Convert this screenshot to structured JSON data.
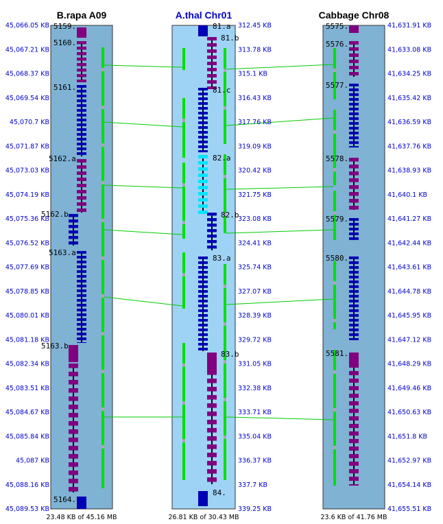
{
  "panels": [
    {
      "title": "B.rapa A09",
      "title_color": "#000000",
      "bg": "#7fb2d3",
      "caption": "23.48 KB of 45.16 MB",
      "tick_side": "left",
      "ticks": [
        "45,066.05 KB",
        "45,067.21 KB",
        "45,068.37 KB",
        "45,069.54 KB",
        "45,070.7 KB",
        "45,071.87 KB",
        "45,073.03 KB",
        "45,074.19 KB",
        "45,075.36 KB",
        "45,076.52 KB",
        "45,077.69 KB",
        "45,078.85 KB",
        "45,080.01 KB",
        "45,081.18 KB",
        "45,082.34 KB",
        "45,083.51 KB",
        "45,084.67 KB",
        "45,085.84 KB",
        "45,087 KB",
        "45,088.16 KB",
        "45,089.53 KB"
      ],
      "gene_labels": [
        "5159.",
        "5160.",
        "5161.",
        "5162.a",
        "5162.b",
        "5163.a",
        "5163.b",
        "5164."
      ]
    },
    {
      "title": "A.thal Chr01",
      "title_color": "#0000cc",
      "bg": "#9fd3f5",
      "caption": "26.81 KB of 30.43 MB",
      "tick_side": "right",
      "ticks": [
        "312.45 KB",
        "313.78 KB",
        "315.1 KB",
        "316.43 KB",
        "317.76 KB",
        "319.09 KB",
        "320.42 KB",
        "321.75 KB",
        "323.08 KB",
        "324.41 KB",
        "325.74 KB",
        "327.07 KB",
        "328.39 KB",
        "329.72 KB",
        "331.05 KB",
        "332.38 KB",
        "333.71 KB",
        "335.04 KB",
        "336.37 KB",
        "337.7 KB",
        "339.25 KB"
      ],
      "gene_labels": [
        "81.a",
        "81.b",
        "81.c",
        "82.a",
        "82.b",
        "83.a",
        "83.b",
        "84."
      ]
    },
    {
      "title": "Cabbage Chr08",
      "title_color": "#000000",
      "bg": "#7fb2d3",
      "caption": "23.6 KB of 41.76 MB",
      "tick_side": "right",
      "ticks": [
        "41,631.91 KB",
        "41,633.08 KB",
        "41,634.25 KB",
        "41,635.42 KB",
        "41,636.59 KB",
        "41,637.76 KB",
        "41,638.93 KB",
        "41,640.1 KB",
        "41,641.27 KB",
        "41,642.44 KB",
        "41,643.61 KB",
        "41,644.78 KB",
        "41,645.95 KB",
        "41,647.12 KB",
        "41,648.29 KB",
        "41,649.46 KB",
        "41,650.63 KB",
        "41,651.8 KB",
        "41,652.97 KB",
        "41,654.14 KB",
        "41,655.51 KB"
      ],
      "gene_labels": [
        "5575.",
        "5576.",
        "5577.",
        "5578.",
        "5579.",
        "5580.",
        "5581."
      ]
    }
  ],
  "colors": {
    "purple_gene": "#800080",
    "blue_gene": "#0000b4",
    "cyan_gene": "#00e5ff",
    "exon_green": "#00e000",
    "intron_grey": "#aaaaaa",
    "connector": "#00cc00"
  }
}
